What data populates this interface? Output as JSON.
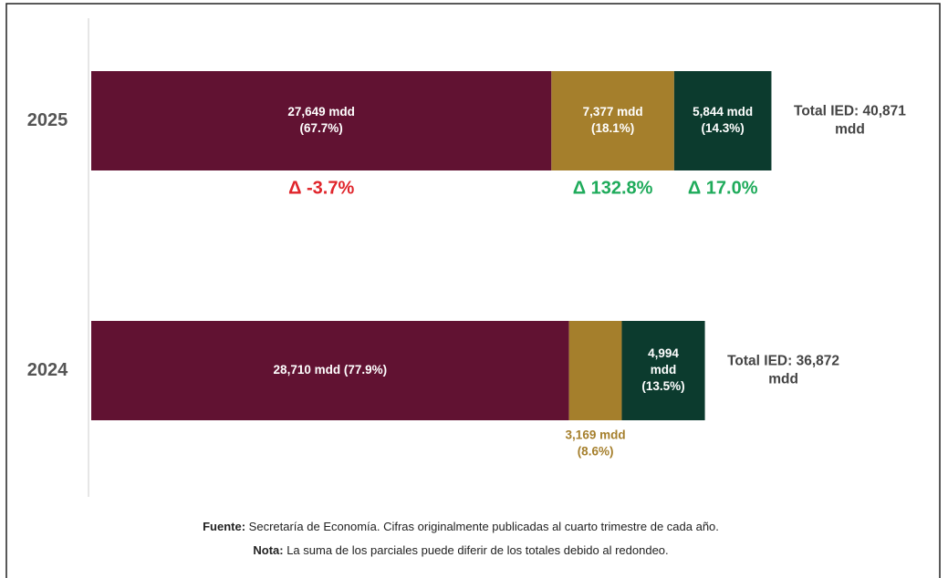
{
  "chart_data": {
    "type": "stacked-bar-horizontal",
    "categories": [
      "2025",
      "2024"
    ],
    "xlim": [
      0,
      50000
    ],
    "series": [
      {
        "color": "#611232",
        "values": [
          27649,
          28710
        ],
        "value_labels": [
          [
            "27,649 mdd",
            "(67.7%)"
          ],
          [
            "28,710 mdd (77.9%)"
          ]
        ],
        "change": "Δ -3.7%",
        "change_color": "#e0252b"
      },
      {
        "color": "#a57f2c",
        "values": [
          7377,
          3169
        ],
        "value_labels": [
          [
            "7,377 mdd",
            "(18.1%)"
          ],
          [
            "3,169 mdd",
            "(8.6%)"
          ]
        ],
        "change": "Δ 132.8%",
        "change_color": "#1fab5b"
      },
      {
        "color": "#0c3b2e",
        "values": [
          5844,
          4994
        ],
        "value_labels": [
          [
            "5,844 mdd",
            "(14.3%)"
          ],
          [
            "4,994",
            "mdd",
            "(13.5%)"
          ]
        ],
        "change": "Δ 17.0%",
        "change_color": "#1fab5b"
      }
    ],
    "totals": [
      [
        "Total IED: 40,871",
        "mdd"
      ],
      [
        "Total IED: 36,872",
        "mdd"
      ]
    ],
    "source_label": "Fuente:",
    "source": "Secretaría de Economía. Cifras originalmente publicadas al cuarto trimestre de cada año.",
    "note_label": "Nota:",
    "note": "La suma de los parciales puede diferir de los totales debido al redondeo."
  }
}
